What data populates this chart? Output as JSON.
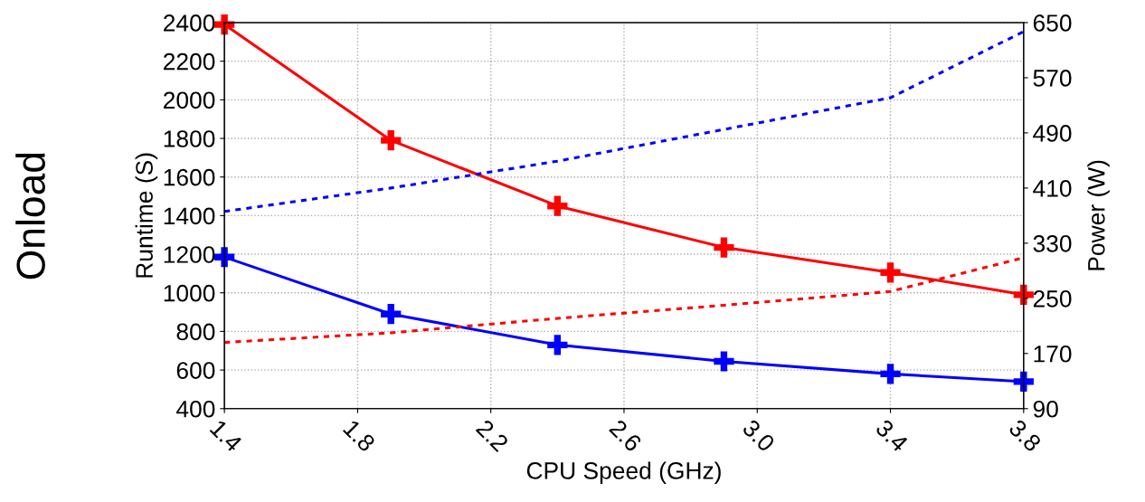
{
  "chart_data": {
    "type": "line",
    "xlabel": "CPU Speed (GHz)",
    "ylabel": "Runtime (S)",
    "y2label": "Power (W)",
    "annotations": [
      "Onload"
    ],
    "x": [
      1.4,
      1.9,
      2.4,
      2.9,
      3.4,
      3.8
    ],
    "series": [
      {
        "color": "#ff0000",
        "values": [
          2390,
          1790,
          1450,
          1235,
          1105,
          990
        ],
        "marker": "cross",
        "line_style": "solid"
      },
      {
        "color": "#0000ff",
        "values": [
          1185,
          890,
          730,
          645,
          580,
          540
        ],
        "marker": "cross",
        "line_style": "solid"
      },
      {
        "color": "#0000ff",
        "values": [
          376,
          410,
          449,
          495,
          541,
          637
        ],
        "axis": "y2",
        "marker": "none",
        "line_style": "dotted"
      },
      {
        "color": "#ff0000",
        "values": [
          186,
          200,
          221,
          240,
          260,
          309
        ],
        "axis": "y2",
        "marker": "none",
        "line_style": "dotted"
      }
    ],
    "xlim": [
      1.4,
      3.8
    ],
    "xticks": [
      {
        "value": 1.4,
        "label": "1.4"
      },
      {
        "value": 1.8,
        "label": "1.8"
      },
      {
        "value": 2.2,
        "label": "2.2"
      },
      {
        "value": 2.6,
        "label": "2.6"
      },
      {
        "value": 3.0,
        "label": "3.0"
      },
      {
        "value": 3.4,
        "label": "3.4"
      },
      {
        "value": 3.8,
        "label": "3.8"
      }
    ],
    "ylim": [
      400,
      2400
    ],
    "yticks": [
      400,
      600,
      800,
      1000,
      1200,
      1400,
      1600,
      1800,
      2000,
      2200,
      2400
    ],
    "y2lim": [
      90,
      650
    ],
    "y2ticks": [
      90,
      170,
      250,
      330,
      410,
      490,
      570,
      650
    ],
    "grid": true,
    "legend": false
  }
}
